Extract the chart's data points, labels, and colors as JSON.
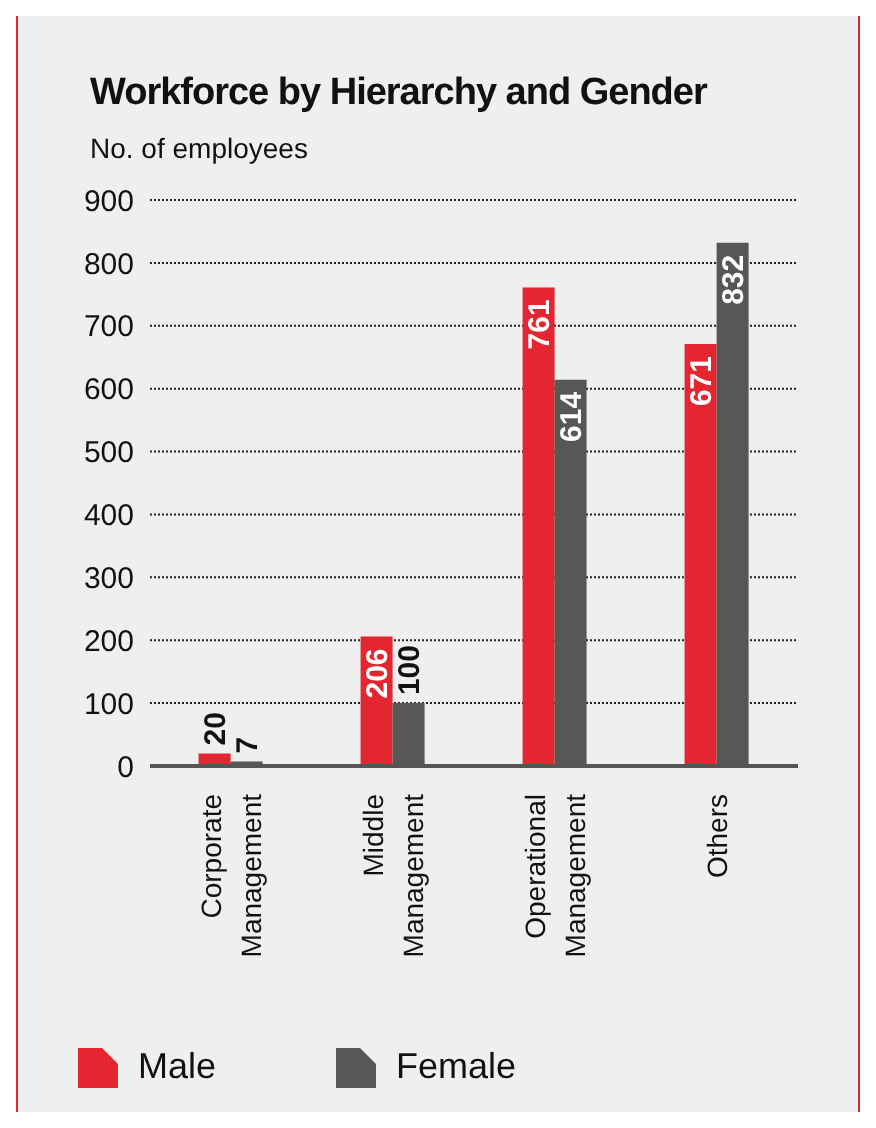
{
  "chart_data": {
    "type": "bar",
    "title": "Workforce by Hierarchy and Gender",
    "subtitle": "No. of employees",
    "categories": [
      "Corporate Management",
      "Middle Management",
      "Operational Management",
      "Others"
    ],
    "series": [
      {
        "name": "Male",
        "color": "#e3262f",
        "values": [
          20,
          206,
          761,
          671
        ]
      },
      {
        "name": "Female",
        "color": "#575756",
        "values": [
          7,
          100,
          614,
          832
        ]
      }
    ],
    "ylim": [
      0,
      900
    ],
    "yticks": [
      0,
      100,
      200,
      300,
      400,
      500,
      600,
      700,
      800,
      900
    ],
    "grid": "y",
    "legend": "bottom",
    "data_labels": true
  }
}
